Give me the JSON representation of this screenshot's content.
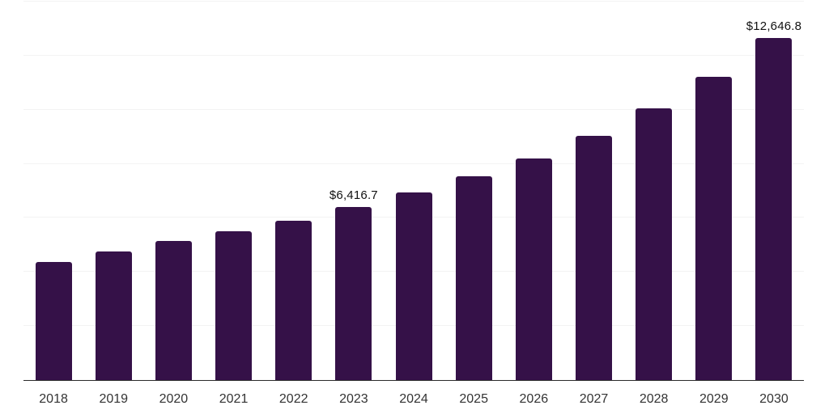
{
  "chart_data": {
    "type": "bar",
    "title": "",
    "categories": [
      "2018",
      "2019",
      "2020",
      "2021",
      "2022",
      "2023",
      "2024",
      "2025",
      "2026",
      "2027",
      "2028",
      "2029",
      "2030"
    ],
    "values": [
      4380,
      4760,
      5140,
      5510,
      5900,
      6416.7,
      6940,
      7540,
      8190,
      9040,
      10050,
      11230,
      12646.8
    ],
    "value_labels": [
      "",
      "",
      "",
      "",
      "",
      "$6,416.7",
      "",
      "",
      "",
      "",
      "",
      "",
      "$12,646.8"
    ],
    "xlabel": "",
    "ylabel": "",
    "ylim": [
      0,
      14000
    ],
    "gridline_interval": 2000,
    "grid": true,
    "y_tick_labels_visible": false,
    "legend": false,
    "colors": {
      "bar": "#351148",
      "grid": "#f3f3f3",
      "axis": "#2a2a2a",
      "tick_label": "#333333",
      "value_label": "#111111",
      "background": "#ffffff"
    }
  }
}
